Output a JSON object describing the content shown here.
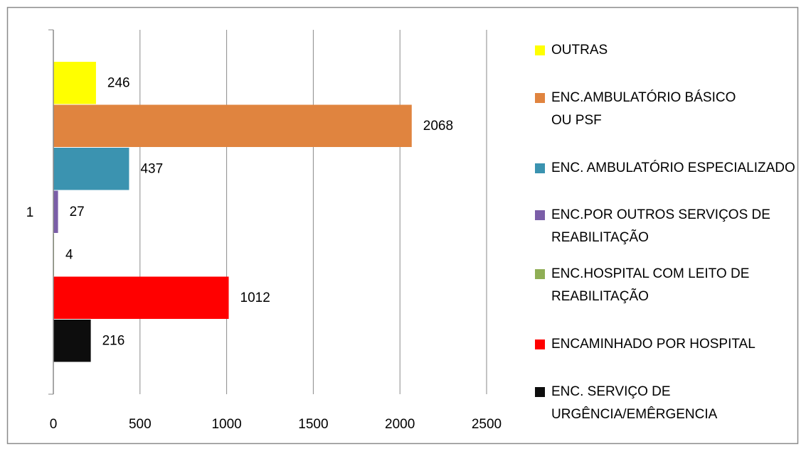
{
  "chart_data": {
    "type": "barh",
    "categories": [
      "1"
    ],
    "series": [
      {
        "name": "OUTRAS",
        "color": "#ffff00",
        "values": [
          246
        ]
      },
      {
        "name": "ENC.AMBULATÓRIO BÁSICO OU PSF",
        "color": "#e0843f",
        "values": [
          2068
        ]
      },
      {
        "name": "ENC. AMBULATÓRIO ESPECIALIZADO",
        "color": "#3b93b0",
        "values": [
          437
        ]
      },
      {
        "name": "ENC.POR OUTROS SERVIÇOS DE REABILITAÇÃO",
        "color": "#7b5ea8",
        "values": [
          27
        ]
      },
      {
        "name": "ENC.HOSPITAL COM LEITO DE REABILITAÇÃO",
        "color": "#8fae55",
        "values": [
          4
        ]
      },
      {
        "name": "ENCAMINHADO POR HOSPITAL",
        "color": "#ff0000",
        "values": [
          1012
        ]
      },
      {
        "name": "ENC. SERVIÇO DE URGÊNCIA/EMÊRGENCIA",
        "color": "#0d0d0d",
        "values": [
          216
        ]
      }
    ],
    "xlim": [
      0,
      2500
    ],
    "xticks": [
      0,
      500,
      1000,
      1500,
      2000,
      2500
    ],
    "grid": true,
    "legend": "right"
  }
}
